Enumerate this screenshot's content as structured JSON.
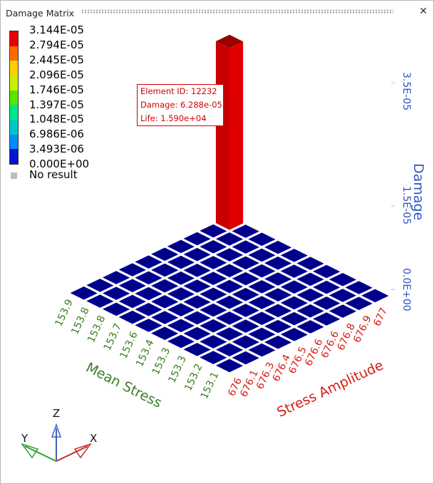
{
  "window": {
    "title": "Damage Matrix",
    "close_glyph": "✕"
  },
  "legend": {
    "labels": [
      "3.144E-05",
      "2.794E-05",
      "2.445E-05",
      "2.096E-05",
      "1.746E-05",
      "1.397E-05",
      "1.048E-05",
      "6.986E-06",
      "3.493E-06",
      "0.000E+00"
    ],
    "colors": [
      "#e60000",
      "#ff6a00",
      "#ffd000",
      "#c8f000",
      "#58e600",
      "#00e68a",
      "#00c8c8",
      "#008cff",
      "#0014d2"
    ],
    "no_result": "No result",
    "no_result_color": "#bdbdbd"
  },
  "annotation": {
    "element": "Element ID: 12232",
    "damage": "Damage: 6.288e-05",
    "life": "Life: 1.590e+04",
    "color": "#d40000"
  },
  "chart_data": {
    "type": "bar3d",
    "mean_stress": {
      "label": "Mean Stress",
      "ticks": [
        "153.9",
        "153.8",
        "153.8",
        "153.7",
        "153.6",
        "153.4",
        "153.3",
        "153.3",
        "153.2",
        "153.1"
      ],
      "color": "#3a7d22"
    },
    "stress_amplitude": {
      "label": "Stress Amplitude",
      "ticks": [
        "676",
        "676.1",
        "676.3",
        "676.4",
        "676.5",
        "676.6",
        "676.6",
        "676.8",
        "676.9",
        "677"
      ],
      "color": "#d41e14"
    },
    "damage_axis": {
      "label": "Damage",
      "ticks": [
        "3.5E-05",
        "1.5E-05",
        "0.0E+00"
      ],
      "color": "#2f55c8"
    },
    "grid_rows": 10,
    "grid_cols": 10,
    "cell_color": "#00008b",
    "bars": [
      {
        "mean_stress_index": 0,
        "stress_amplitude_index": 9,
        "value": 6.288e-05,
        "color": "#dc0000"
      }
    ]
  },
  "triad": {
    "x": "X",
    "y": "Y",
    "z": "Z"
  }
}
